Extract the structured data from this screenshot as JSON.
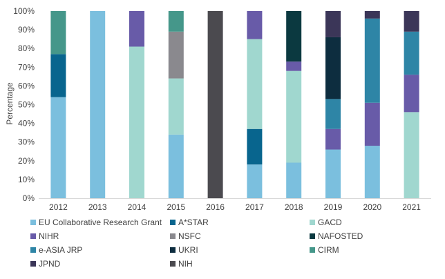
{
  "chart_data": {
    "type": "bar",
    "stacked": "percent",
    "title": "",
    "xlabel": "",
    "ylabel": "Percentage",
    "ylim": [
      0,
      100
    ],
    "yticks": [
      "0%",
      "10%",
      "20%",
      "30%",
      "40%",
      "50%",
      "60%",
      "70%",
      "80%",
      "90%",
      "100%"
    ],
    "grid": false,
    "legend_position": "bottom",
    "categories": [
      "2012",
      "2013",
      "2014",
      "2015",
      "2016",
      "2017",
      "2018",
      "2019",
      "2020",
      "2021"
    ],
    "series": [
      {
        "name": "EU Collaborative Research Grant",
        "color": "#7bbfde",
        "values": [
          54,
          100,
          0,
          34,
          0,
          18,
          19,
          26,
          28,
          0
        ]
      },
      {
        "name": "A*STAR",
        "color": "#08658e",
        "values": [
          23,
          0,
          0,
          0,
          0,
          19,
          0,
          0,
          0,
          0
        ]
      },
      {
        "name": "GACD",
        "color": "#a0d7cf",
        "values": [
          0,
          0,
          81,
          30,
          0,
          48,
          49,
          0,
          0,
          46
        ]
      },
      {
        "name": "NIHR",
        "color": "#685ba8",
        "values": [
          0,
          0,
          19,
          0,
          0,
          15,
          5,
          11,
          23,
          20
        ]
      },
      {
        "name": "NSFC",
        "color": "#8a898e",
        "values": [
          0,
          0,
          0,
          25,
          0,
          0,
          0,
          0,
          0,
          0
        ]
      },
      {
        "name": "NAFOSTED",
        "color": "#0b3940",
        "values": [
          0,
          0,
          0,
          0,
          0,
          0,
          27,
          0,
          0,
          0
        ]
      },
      {
        "name": "e-ASIA JRP",
        "color": "#2e85a6",
        "values": [
          0,
          0,
          0,
          0,
          0,
          0,
          0,
          16,
          45,
          23
        ]
      },
      {
        "name": "UKRI",
        "color": "#0d2d3f",
        "values": [
          0,
          0,
          0,
          0,
          0,
          0,
          0,
          33,
          0,
          0
        ]
      },
      {
        "name": "CIRM",
        "color": "#45978a",
        "values": [
          23,
          0,
          0,
          11,
          0,
          0,
          0,
          0,
          0,
          0
        ]
      },
      {
        "name": "JPND",
        "color": "#3b3658",
        "values": [
          0,
          0,
          0,
          0,
          0,
          0,
          0,
          14,
          4,
          11
        ]
      },
      {
        "name": "NIH",
        "color": "#4b4a4f",
        "values": [
          0,
          0,
          0,
          0,
          100,
          0,
          0,
          0,
          0,
          0
        ]
      }
    ]
  }
}
